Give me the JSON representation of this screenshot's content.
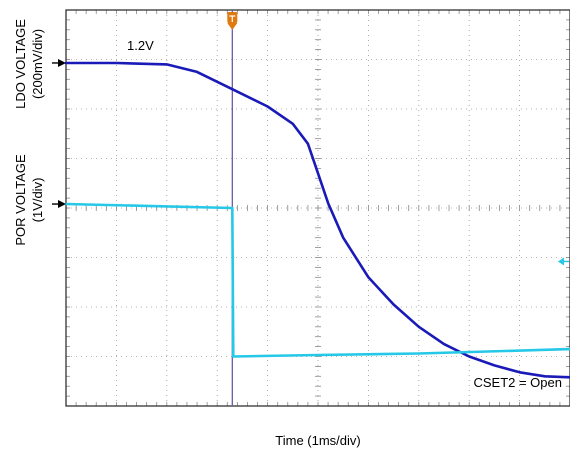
{
  "chart_data": {
    "type": "line",
    "title": "",
    "xlabel": "Time (1ms/div)",
    "annotations": {
      "level_label": "1.2V",
      "condition": "CSET2 = Open"
    },
    "ylabels": [
      {
        "name": "LDO VOLTAGE",
        "scale": "(200mV/div)"
      },
      {
        "name": "POR VOLTAGE",
        "scale": "(1V/div)"
      }
    ],
    "x_divisions": 10,
    "y_divisions": 8,
    "grid": true,
    "trigger_time_div": 3.3,
    "series": [
      {
        "label": "LDO",
        "color": "#1a1ab8",
        "x_div": [
          0,
          1.0,
          2.0,
          2.6,
          3.3,
          4.0,
          4.5,
          4.8,
          5.0,
          5.2,
          5.5,
          6.0,
          6.5,
          7.0,
          7.5,
          8.0,
          8.5,
          9.0,
          9.5,
          10.0
        ],
        "y_div": [
          6.93,
          6.93,
          6.9,
          6.75,
          6.4,
          6.05,
          5.7,
          5.3,
          4.7,
          4.1,
          3.4,
          2.6,
          2.05,
          1.6,
          1.25,
          1.0,
          0.82,
          0.68,
          0.6,
          0.58
        ]
      },
      {
        "label": "POR",
        "color": "#25c8e6",
        "x_div": [
          0,
          3.29,
          3.3,
          3.32,
          5.0,
          7.0,
          10.0
        ],
        "y_div": [
          4.08,
          4.0,
          4.0,
          1.0,
          1.03,
          1.06,
          1.15
        ]
      }
    ],
    "markers": {
      "ldo_ref_y_div": 6.93,
      "por_ref_y_div": 4.08,
      "right_marker_y_div": 2.92,
      "trigger_marker_color": "#e07a10",
      "right_marker_color": "#25c8e6"
    }
  }
}
